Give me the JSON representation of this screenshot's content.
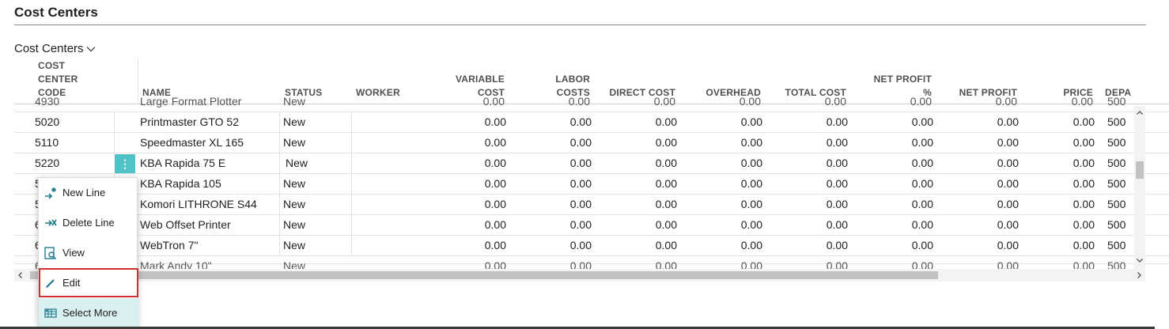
{
  "page": {
    "title": "Cost Centers",
    "part_title": "Cost Centers"
  },
  "columns": {
    "code": [
      "COST",
      "CENTER",
      "CODE"
    ],
    "name": "NAME",
    "status": "STATUS",
    "worker": "WORKER",
    "variable_cost": [
      "VARIABLE",
      "COST"
    ],
    "labor_costs": [
      "LABOR",
      "COSTS"
    ],
    "direct_cost": "DIRECT COST",
    "overhead": "OVERHEAD",
    "total_cost": "TOTAL COST",
    "net_profit_pct": [
      "NET PROFIT",
      "%"
    ],
    "net_profit": "NET PROFIT",
    "price": "PRICE",
    "department": "DEPA"
  },
  "rows": [
    {
      "code": "5020",
      "name": "Printmaster GTO 52",
      "status": "New",
      "worker": "",
      "variable_cost": "0.00",
      "labor_costs": "0.00",
      "direct_cost": "0.00",
      "overhead": "0.00",
      "total_cost": "0.00",
      "net_profit_pct": "0.00",
      "net_profit": "0.00",
      "price": "0.00",
      "department": "500"
    },
    {
      "code": "5110",
      "name": "Speedmaster XL 165",
      "status": "New",
      "worker": "",
      "variable_cost": "0.00",
      "labor_costs": "0.00",
      "direct_cost": "0.00",
      "overhead": "0.00",
      "total_cost": "0.00",
      "net_profit_pct": "0.00",
      "net_profit": "0.00",
      "price": "0.00",
      "department": "500"
    },
    {
      "code": "5220",
      "name": "KBA Rapida 75 E",
      "status": "New",
      "worker": "",
      "variable_cost": "0.00",
      "labor_costs": "0.00",
      "direct_cost": "0.00",
      "overhead": "0.00",
      "total_cost": "0.00",
      "net_profit_pct": "0.00",
      "net_profit": "0.00",
      "price": "0.00",
      "department": "500"
    },
    {
      "code": "5",
      "name": "KBA Rapida 105",
      "status": "New",
      "worker": "",
      "variable_cost": "0.00",
      "labor_costs": "0.00",
      "direct_cost": "0.00",
      "overhead": "0.00",
      "total_cost": "0.00",
      "net_profit_pct": "0.00",
      "net_profit": "0.00",
      "price": "0.00",
      "department": "500"
    },
    {
      "code": "5",
      "name": "Komori LITHRONE S44",
      "status": "New",
      "worker": "",
      "variable_cost": "0.00",
      "labor_costs": "0.00",
      "direct_cost": "0.00",
      "overhead": "0.00",
      "total_cost": "0.00",
      "net_profit_pct": "0.00",
      "net_profit": "0.00",
      "price": "0.00",
      "department": "500"
    },
    {
      "code": "6",
      "name": "Web Offset Printer",
      "status": "New",
      "worker": "",
      "variable_cost": "0.00",
      "labor_costs": "0.00",
      "direct_cost": "0.00",
      "overhead": "0.00",
      "total_cost": "0.00",
      "net_profit_pct": "0.00",
      "net_profit": "0.00",
      "price": "0.00",
      "department": "500"
    },
    {
      "code": "6",
      "name": "WebTron 7\"",
      "status": "New",
      "worker": "",
      "variable_cost": "0.00",
      "labor_costs": "0.00",
      "direct_cost": "0.00",
      "overhead": "0.00",
      "total_cost": "0.00",
      "net_profit_pct": "0.00",
      "net_profit": "0.00",
      "price": "0.00",
      "department": "500"
    }
  ],
  "partial_rows": {
    "top": {
      "code": "4930",
      "name": "Large Format Plotter",
      "status": "New",
      "value": "0.00",
      "department": "500"
    },
    "bottom": {
      "code": "6",
      "name": "Mark Andy 10\"",
      "status": "New",
      "value": "0.00",
      "department": "500"
    }
  },
  "row_action_label": "⋮",
  "context_menu": {
    "items": [
      {
        "label": "New Line",
        "icon": "new-line-icon"
      },
      {
        "label": "Delete Line",
        "icon": "delete-line-icon"
      },
      {
        "label": "View",
        "icon": "view-icon"
      },
      {
        "label": "Edit",
        "icon": "edit-icon"
      },
      {
        "label": "Select More",
        "icon": "select-more-icon"
      }
    ]
  },
  "colors": {
    "accent": "#4fc3c8",
    "icon": "#1e7a8c",
    "highlight_border": "#d32f2f",
    "select_more_bg": "#d9eff0"
  }
}
